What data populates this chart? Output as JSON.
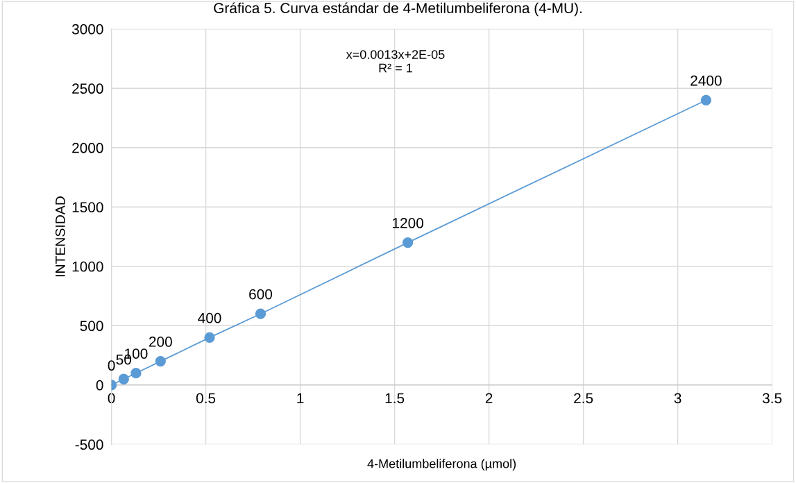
{
  "chart_data": {
    "type": "line",
    "title": "Gráfica 5. Curva estándar de 4-Metilumbeliferona (4-MU).",
    "xlabel": "4-Metilumbeliferona (µmol)",
    "ylabel": "INTENSIDAD",
    "x": [
      0,
      0.065,
      0.13,
      0.26,
      0.52,
      0.79,
      1.57,
      3.15
    ],
    "series": [
      {
        "color": "#5b9bd5",
        "values": [
          0,
          50,
          100,
          200,
          400,
          600,
          1200,
          2400
        ]
      }
    ],
    "annotations": [
      "x=0.0013x+2E-05\nR² = 1"
    ],
    "data_labels": true,
    "marker": "circle",
    "line_style": "solid",
    "grid": true,
    "xlim": [
      0,
      3.5
    ],
    "xticks": [
      0,
      0.5,
      1,
      1.5,
      2,
      2.5,
      3,
      3.5
    ],
    "ylim": [
      -500,
      3000
    ],
    "yticks": [
      -500,
      0,
      500,
      1000,
      1500,
      2000,
      2500,
      3000
    ]
  }
}
